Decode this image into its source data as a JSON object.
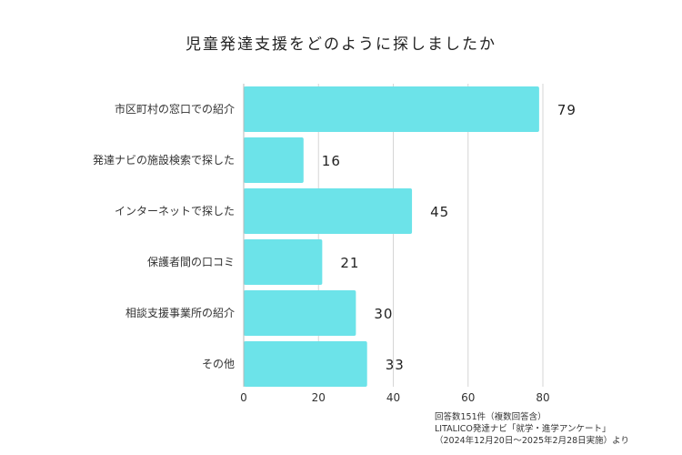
{
  "chart_data": {
    "type": "bar",
    "orientation": "horizontal",
    "title": "児童発達支援をどのように探しましたか",
    "categories": [
      "市区町村の窓口での紹介",
      "発達ナビの施設検索で探した",
      "インターネットで探した",
      "保護者間の口コミ",
      "相談支援事業所の紹介",
      "その他"
    ],
    "values": [
      79,
      16,
      45,
      21,
      30,
      33
    ],
    "xlim": [
      0,
      80
    ],
    "xticks": [
      0,
      20,
      40,
      60,
      80
    ],
    "grid": true,
    "bar_color": "#6ce3e9",
    "xlabel": "",
    "ylabel": ""
  },
  "footnote": {
    "lines": [
      "回答数151件（複数回答含）",
      "LITALICO発達ナビ「就学・進学アンケート」",
      "（2024年12月20日～2025年2月28日実施）より"
    ]
  }
}
